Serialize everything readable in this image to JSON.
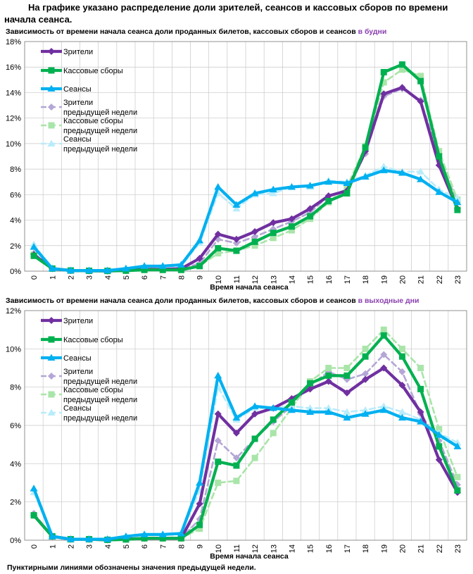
{
  "page": {
    "title": "На графике указано распределение доли зрителей, сеансов и кассовых сборов по времени начала сеанса.",
    "footnote": "Пунктирными линиями обозначены значения предыдущей недели."
  },
  "colors": {
    "viewers": "#7030a0",
    "box_office": "#00b050",
    "sessions": "#00b0f0",
    "viewers_prev": "#b4a7d6",
    "box_office_prev": "#a9e5a9",
    "sessions_prev": "#b9ecfb",
    "grid": "#c8c8c8",
    "highlight": "#8a3fb0"
  },
  "chart_data": [
    {
      "type": "line",
      "title": "Зависимость от времени начала сеанса доли проданных билетов, кассовых сборов и сеансов",
      "title_highlight": "в будни",
      "xlabel": "Время начала сеанса",
      "ylabel": "",
      "ylim": [
        0,
        18
      ],
      "ytick_step": 2,
      "y_unit": "%",
      "categories": [
        "0",
        "1",
        "2",
        "3",
        "4",
        "5",
        "6",
        "7",
        "8",
        "9",
        "10",
        "11",
        "12",
        "13",
        "14",
        "15",
        "16",
        "17",
        "18",
        "19",
        "20",
        "21",
        "22",
        "23"
      ],
      "series": [
        {
          "key": "viewers_prev",
          "name": "Зрители предыдущей недели",
          "line1": "Зрители",
          "line2": "предыдущей недели",
          "dashed": true,
          "marker": "diamond",
          "values": [
            1.4,
            0.2,
            0.05,
            0.03,
            0.02,
            0.05,
            0.15,
            0.15,
            0.2,
            0.6,
            2.5,
            2.2,
            2.7,
            3.3,
            3.9,
            4.6,
            5.9,
            6.4,
            9.2,
            13.7,
            14.3,
            13.4,
            8.9,
            5.4
          ]
        },
        {
          "key": "box_office_prev",
          "name": "Кассовые сборы предыдущей недели",
          "line1": "Кассовые сборы",
          "line2": "предыдущей недели",
          "dashed": true,
          "marker": "square",
          "values": [
            1.3,
            0.2,
            0.05,
            0.03,
            0.02,
            0.04,
            0.1,
            0.1,
            0.1,
            0.4,
            1.4,
            1.6,
            2.0,
            2.6,
            3.2,
            4.1,
            5.4,
            6.6,
            9.8,
            14.8,
            15.8,
            15.3,
            9.4,
            5.6
          ]
        },
        {
          "key": "sessions_prev",
          "name": "Сеансы предыдущей недели",
          "line1": "Сеансы",
          "line2": "предыдущей недели",
          "dashed": true,
          "marker": "triangle",
          "values": [
            2.1,
            0.2,
            0.05,
            0.05,
            0.05,
            0.2,
            0.3,
            0.35,
            0.4,
            2.2,
            6.1,
            4.9,
            6.0,
            6.1,
            6.6,
            6.6,
            7.1,
            7.0,
            7.5,
            8.2,
            7.8,
            7.8,
            6.4,
            5.7
          ]
        },
        {
          "key": "viewers",
          "name": "Зрители",
          "line1": "Зрители",
          "line2": "",
          "dashed": false,
          "marker": "diamond",
          "values": [
            1.3,
            0.2,
            0.05,
            0.03,
            0.02,
            0.05,
            0.15,
            0.15,
            0.2,
            1.0,
            2.9,
            2.5,
            3.1,
            3.8,
            4.1,
            4.9,
            5.9,
            6.3,
            9.4,
            13.9,
            14.4,
            13.3,
            8.3,
            4.9
          ]
        },
        {
          "key": "box_office",
          "name": "Кассовые сборы",
          "line1": "Кассовые сборы",
          "line2": "",
          "dashed": false,
          "marker": "square",
          "values": [
            1.2,
            0.2,
            0.05,
            0.03,
            0.02,
            0.04,
            0.1,
            0.1,
            0.1,
            0.4,
            1.8,
            1.6,
            2.3,
            3.0,
            3.5,
            4.3,
            5.5,
            6.1,
            9.7,
            15.6,
            16.2,
            14.9,
            9.0,
            4.8
          ]
        },
        {
          "key": "sessions",
          "name": "Сеансы",
          "line1": "Сеансы",
          "line2": "",
          "dashed": false,
          "marker": "triangle",
          "values": [
            1.9,
            0.2,
            0.05,
            0.05,
            0.05,
            0.2,
            0.4,
            0.4,
            0.5,
            2.4,
            6.6,
            5.2,
            6.1,
            6.4,
            6.6,
            6.7,
            7.0,
            6.9,
            7.4,
            7.9,
            7.7,
            7.2,
            6.2,
            5.4
          ]
        }
      ]
    },
    {
      "type": "line",
      "title": "Зависимость от времени начала сеанса доли проданных билетов, кассовых сборов и сеансов",
      "title_highlight": "в выходные дни",
      "xlabel": "Время начала сеанса",
      "ylabel": "",
      "ylim": [
        0,
        12
      ],
      "ytick_step": 2,
      "y_unit": "%",
      "categories": [
        "0",
        "1",
        "2",
        "3",
        "4",
        "5",
        "6",
        "7",
        "8",
        "9",
        "10",
        "11",
        "12",
        "13",
        "14",
        "15",
        "16",
        "17",
        "18",
        "19",
        "20",
        "21",
        "22",
        "23"
      ],
      "series": [
        {
          "key": "viewers_prev",
          "name": "Зрители предыдущей недели",
          "line1": "Зрители",
          "line2": "предыдущей недели",
          "dashed": true,
          "marker": "diamond",
          "values": [
            1.4,
            0.2,
            0.05,
            0.05,
            0.02,
            0.05,
            0.1,
            0.1,
            0.1,
            1.1,
            5.2,
            4.3,
            5.3,
            6.2,
            7.0,
            8.1,
            8.8,
            8.4,
            8.7,
            9.7,
            8.8,
            6.6,
            5.2,
            2.9
          ]
        },
        {
          "key": "box_office_prev",
          "name": "Кассовые сборы предыдущей недели",
          "line1": "Кассовые сборы",
          "line2": "предыдущей недели",
          "dashed": true,
          "marker": "square",
          "values": [
            1.3,
            0.2,
            0.05,
            0.05,
            0.02,
            0.04,
            0.1,
            0.1,
            0.1,
            0.6,
            3.0,
            3.1,
            4.3,
            5.6,
            6.9,
            8.3,
            9.0,
            9.0,
            10.0,
            11.0,
            10.0,
            9.0,
            5.8,
            3.3
          ]
        },
        {
          "key": "sessions_prev",
          "name": "Сеансы предыдущей недели",
          "line1": "Сеансы",
          "line2": "предыдущей недели",
          "dashed": true,
          "marker": "triangle",
          "values": [
            2.5,
            0.2,
            0.05,
            0.05,
            0.05,
            0.2,
            0.3,
            0.3,
            0.35,
            2.6,
            8.0,
            6.3,
            6.9,
            6.9,
            7.0,
            6.9,
            6.9,
            6.7,
            6.8,
            7.0,
            6.7,
            6.3,
            5.6,
            5.1
          ]
        },
        {
          "key": "viewers",
          "name": "Зрители",
          "line1": "Зрители",
          "line2": "",
          "dashed": false,
          "marker": "diamond",
          "values": [
            1.3,
            0.2,
            0.05,
            0.05,
            0.02,
            0.05,
            0.1,
            0.1,
            0.1,
            1.9,
            6.6,
            5.6,
            6.6,
            6.9,
            7.4,
            7.9,
            8.3,
            7.7,
            8.4,
            9.0,
            8.1,
            6.7,
            4.2,
            2.5
          ]
        },
        {
          "key": "box_office",
          "name": "Кассовые сборы",
          "line1": "Кассовые сборы",
          "line2": "",
          "dashed": false,
          "marker": "square",
          "values": [
            1.3,
            0.2,
            0.05,
            0.05,
            0.02,
            0.04,
            0.1,
            0.1,
            0.1,
            0.8,
            4.1,
            3.9,
            5.3,
            6.3,
            7.2,
            8.2,
            8.6,
            8.6,
            9.6,
            10.7,
            9.6,
            7.9,
            4.9,
            2.6
          ]
        },
        {
          "key": "sessions",
          "name": "Сеансы",
          "line1": "Сеансы",
          "line2": "",
          "dashed": false,
          "marker": "triangle",
          "values": [
            2.7,
            0.2,
            0.05,
            0.05,
            0.05,
            0.2,
            0.3,
            0.3,
            0.35,
            3.0,
            8.6,
            6.4,
            7.0,
            6.9,
            6.8,
            6.7,
            6.7,
            6.4,
            6.6,
            6.8,
            6.4,
            6.2,
            5.5,
            4.9
          ]
        }
      ]
    }
  ]
}
